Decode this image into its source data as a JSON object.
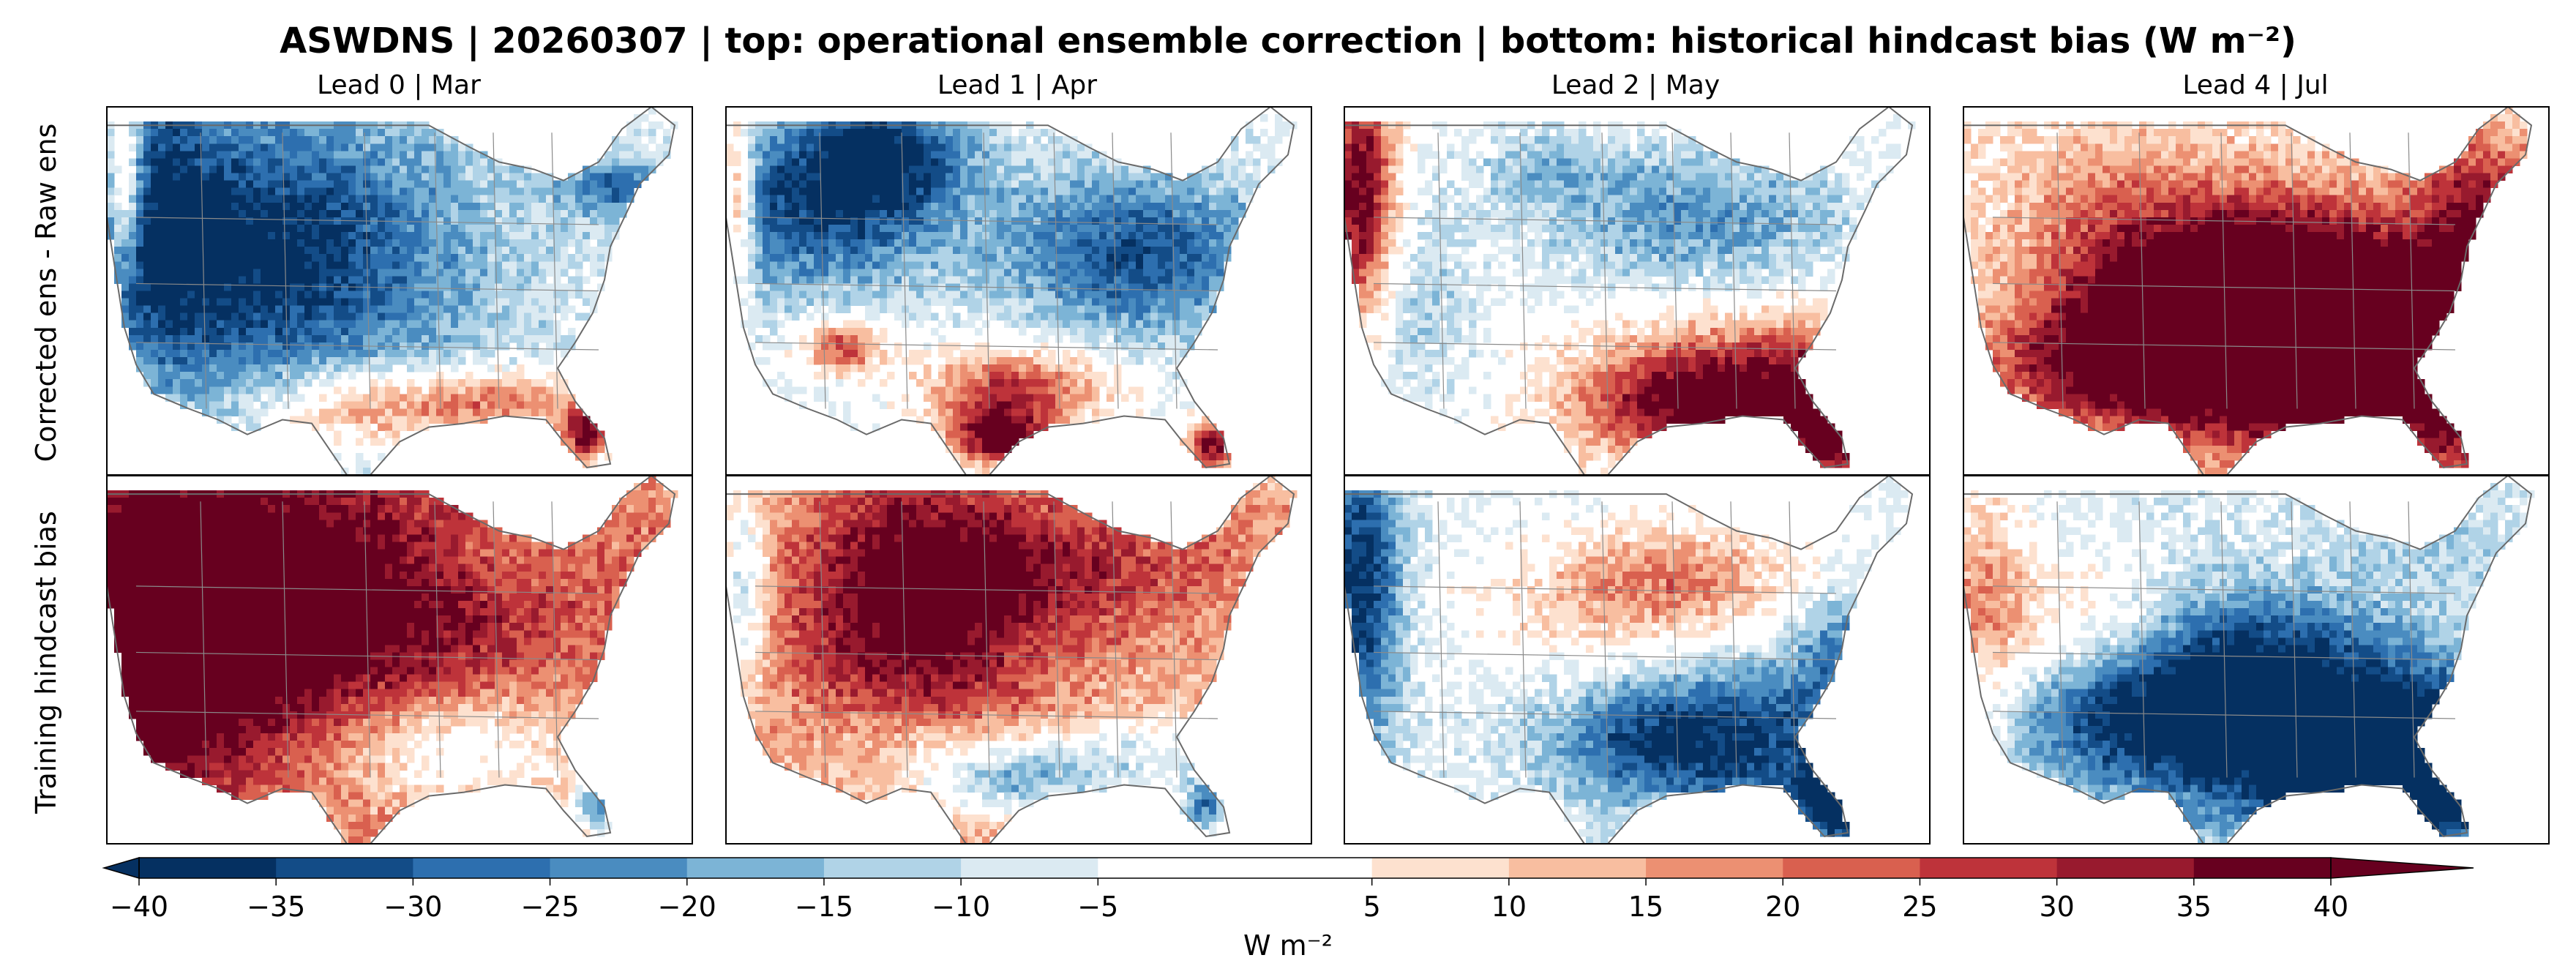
{
  "chart_data": {
    "type": "heatmap",
    "title": "ASWDNS | 20260307 | top: operational ensemble correction | bottom: historical hindcast bias (W m⁻²)",
    "row_labels": [
      "Corrected ens - Raw ens",
      "Training hindcast bias"
    ],
    "columns": [
      {
        "label": "Lead 0 | Mar"
      },
      {
        "label": "Lead 1 | Apr"
      },
      {
        "label": "Lead 2 | May"
      },
      {
        "label": "Lead 4 | Jul"
      }
    ],
    "panels": [
      {
        "row": 0,
        "col": 0,
        "summary": "negative over west and central US, positive along Gulf coast and Florida"
      },
      {
        "row": 0,
        "col": 1,
        "summary": "negative over northwest and Great Lakes, positive over Texas and Florida"
      },
      {
        "row": 0,
        "col": 2,
        "summary": "positive along west coast and southeast, negative over northern plains"
      },
      {
        "row": 0,
        "col": 3,
        "summary": "strongly positive over central and southeast US"
      },
      {
        "row": 1,
        "col": 0,
        "summary": "strongly positive over west and central US"
      },
      {
        "row": 1,
        "col": 1,
        "summary": "positive over interior, negative over Texas and Gulf coast"
      },
      {
        "row": 1,
        "col": 2,
        "summary": "negative over west coast and southeast, positive over Great Lakes"
      },
      {
        "row": 1,
        "col": 3,
        "summary": "strongly negative over southeast, positive along west coast"
      }
    ],
    "colorbar": {
      "label": "W m⁻²",
      "min": -40,
      "max": 40,
      "step": 5,
      "extend": "both",
      "ticks": [
        -40,
        -35,
        -30,
        -25,
        -20,
        -15,
        -10,
        -5,
        5,
        10,
        15,
        20,
        25,
        30,
        35,
        40
      ],
      "tick_labels": [
        "−40",
        "−35",
        "−30",
        "−25",
        "−20",
        "−15",
        "−10",
        "−5",
        "5",
        "10",
        "15",
        "20",
        "25",
        "30",
        "35",
        "40"
      ],
      "bins": [
        {
          "range": [
            -40,
            -35
          ],
          "color": "#053061"
        },
        {
          "range": [
            -35,
            -30
          ],
          "color": "#134c87"
        },
        {
          "range": [
            -30,
            -25
          ],
          "color": "#2d6faf"
        },
        {
          "range": [
            -25,
            -20
          ],
          "color": "#4a8cc0"
        },
        {
          "range": [
            -20,
            -15
          ],
          "color": "#7cb4d6"
        },
        {
          "range": [
            -15,
            -10
          ],
          "color": "#b0d3e7"
        },
        {
          "range": [
            -10,
            -5
          ],
          "color": "#dbeaf2"
        },
        {
          "range": [
            -5,
            5
          ],
          "color": "#ffffff"
        },
        {
          "range": [
            5,
            10
          ],
          "color": "#fde1cf"
        },
        {
          "range": [
            10,
            15
          ],
          "color": "#f8bea0"
        },
        {
          "range": [
            15,
            20
          ],
          "color": "#ec9072"
        },
        {
          "range": [
            20,
            25
          ],
          "color": "#d9604f"
        },
        {
          "range": [
            25,
            30
          ],
          "color": "#be333a"
        },
        {
          "range": [
            30,
            35
          ],
          "color": "#981a2e"
        },
        {
          "range": [
            35,
            40
          ],
          "color": "#67001f"
        }
      ]
    }
  }
}
